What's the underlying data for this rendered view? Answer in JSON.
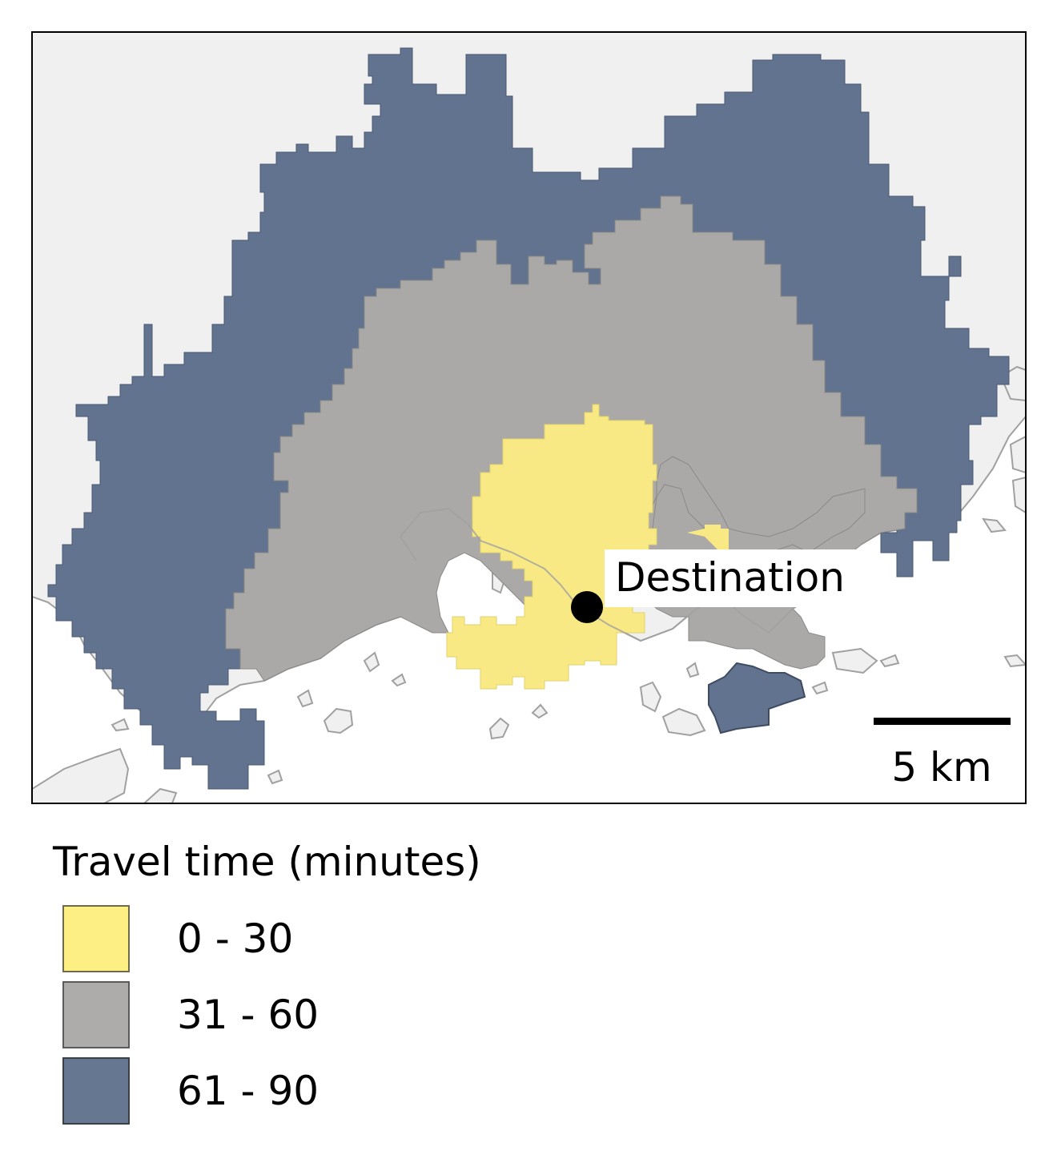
{
  "map": {
    "destination_label": "Destination",
    "scale_bar_label": "5 km",
    "colors": {
      "land": "#f0f0f0",
      "sea": "#ffffff",
      "coast": "#a0a0a0",
      "frame": "#000000",
      "band_0_30": "#f8e985",
      "band_31_60": "#aaa9a7",
      "band_61_90": "#61738f",
      "destination_marker": "#000000"
    }
  },
  "legend": {
    "title": "Travel time (minutes)",
    "items": [
      {
        "label": "0 - 30",
        "color": "#fdef84",
        "border": "#6e6a4a"
      },
      {
        "label": "31 - 60",
        "color": "#adacaa",
        "border": "#5a5a5a"
      },
      {
        "label": "61 - 90",
        "color": "#667891",
        "border": "#3a3f48"
      }
    ]
  }
}
